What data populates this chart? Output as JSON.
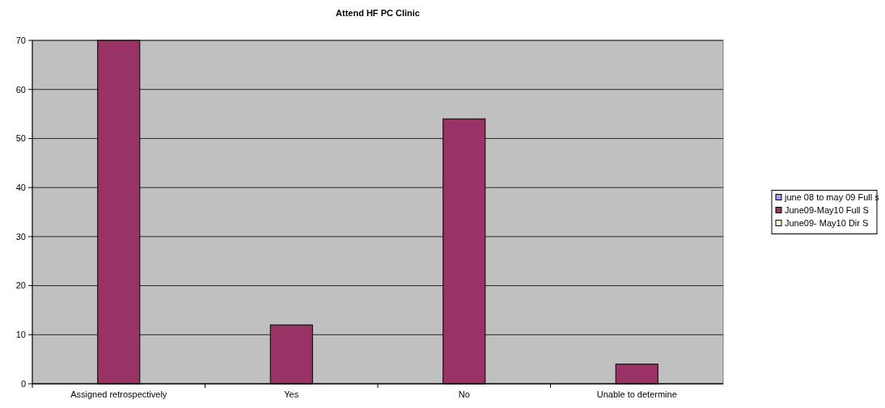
{
  "chart_data": {
    "type": "bar",
    "title": "Attend HF PC Clinic",
    "categories": [
      "Assigned retrospectively",
      "Yes",
      "No",
      "Unable to determine"
    ],
    "series": [
      {
        "name": "june 08 to may 09 Full s",
        "color": "#9999ff",
        "values": [
          null,
          null,
          null,
          null
        ]
      },
      {
        "name": "June09-May10 Full S",
        "color": "#993366",
        "values": [
          70,
          12,
          54,
          4
        ]
      },
      {
        "name": "June09- May10 Dir S",
        "color": "#ffffcc",
        "values": [
          null,
          null,
          null,
          null
        ]
      }
    ],
    "ylim": [
      0,
      70
    ],
    "yticks": [
      0,
      10,
      20,
      30,
      40,
      50,
      60,
      70
    ],
    "grid": "y",
    "legend": "right"
  }
}
